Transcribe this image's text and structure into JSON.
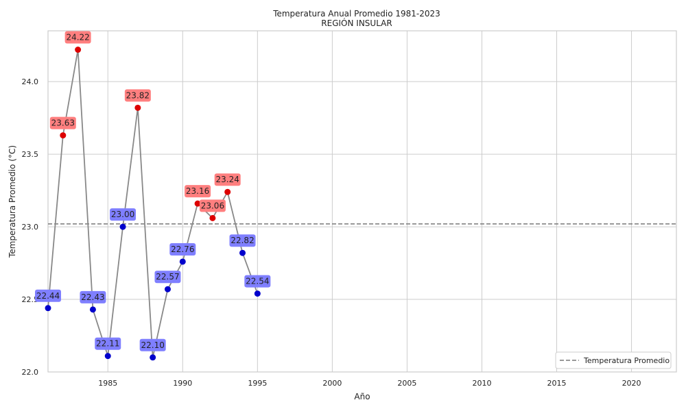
{
  "chart_data": {
    "type": "line",
    "title": "Temperatura Anual Promedio 1981-2023",
    "subtitle": "REGIÓN INSULAR",
    "xlabel": "Año",
    "ylabel": "Temperatura Promedio (°C)",
    "xlim": [
      1981,
      2023
    ],
    "ylim": [
      22.0,
      24.35
    ],
    "xticks": [
      1985,
      1990,
      1995,
      2000,
      2005,
      2010,
      2015,
      2020
    ],
    "yticks": [
      22.0,
      22.5,
      23.0,
      23.5,
      24.0
    ],
    "ytick_labels": [
      "22.0",
      "22.5",
      "23.0",
      "23.5",
      "24.0"
    ],
    "grid": true,
    "x": [
      1981,
      1982,
      1983,
      1984,
      1985,
      1986,
      1987,
      1988,
      1989,
      1990,
      1991,
      1992,
      1993,
      1994,
      1995
    ],
    "values": [
      22.44,
      23.63,
      24.22,
      22.43,
      22.11,
      23.0,
      23.82,
      22.1,
      22.57,
      22.76,
      23.16,
      23.06,
      23.24,
      22.82,
      22.54
    ],
    "labels": [
      "22.44",
      "23.63",
      "24.22",
      "22.43",
      "22.11",
      "23.00",
      "23.82",
      "22.10",
      "22.57",
      "22.76",
      "23.16",
      "23.06",
      "23.24",
      "22.82",
      "22.54"
    ],
    "reference_line": {
      "name": "Temperatura Promedio",
      "value": 23.02,
      "style": "dashed"
    },
    "legend": {
      "entries": [
        "Temperatura Promedio"
      ],
      "placement": "lower-right"
    },
    "colors": {
      "line": "#888888",
      "above": "#dd0000",
      "below": "#0000cc",
      "above_box": "#ff7f7f",
      "below_box": "#7f7fff",
      "reference": "#777777",
      "grid": "#cccccc"
    }
  }
}
